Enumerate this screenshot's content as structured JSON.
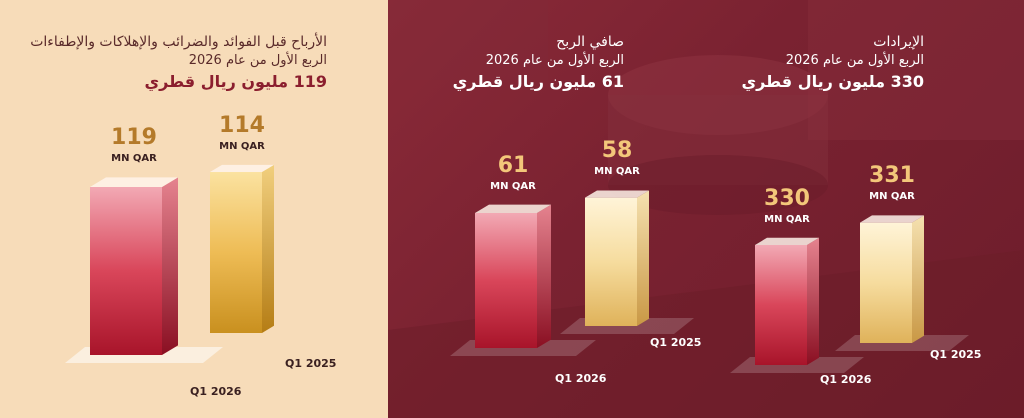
{
  "colors": {
    "left_bg": "#f7dcb9",
    "right_bg": "#7a2231",
    "gold_text": "#b47a2a",
    "light_gold_text": "#f3c77a",
    "red_bar": "#c8283c",
    "gold_bar": "#e7b84f",
    "cream_bar": "#f5e1b0"
  },
  "chart_data": [
    {
      "type": "bar",
      "title": "الأرباح قبل الفوائد والضرائب والإهلاكات والإطفاءات",
      "subtitle": "الربع الأول من عام 2026",
      "headline": "119 مليون ريال قطري",
      "categories": [
        "Q1 2026",
        "Q1 2025"
      ],
      "values": [
        119,
        114
      ],
      "value_labels": [
        "119",
        "114"
      ],
      "unit": "MN QAR",
      "ylim": [
        0,
        125
      ]
    },
    {
      "type": "bar",
      "title": "صافي الربح",
      "subtitle": "الربع الأول من عام 2026",
      "headline": "61 مليون ريال قطري",
      "categories": [
        "Q1 2026",
        "Q1 2025"
      ],
      "values": [
        61,
        58
      ],
      "value_labels": [
        "61",
        "58"
      ],
      "unit": "MN QAR",
      "ylim": [
        0,
        125
      ]
    },
    {
      "type": "bar",
      "title": "الإيرادات",
      "subtitle": "الربع الأول من عام 2026",
      "headline": "330 مليون ريال قطري",
      "categories": [
        "Q1 2026",
        "Q1 2025"
      ],
      "values": [
        330,
        331
      ],
      "value_labels": [
        "330",
        "331"
      ],
      "unit": "MN QAR",
      "ylim": [
        0,
        400
      ]
    }
  ]
}
